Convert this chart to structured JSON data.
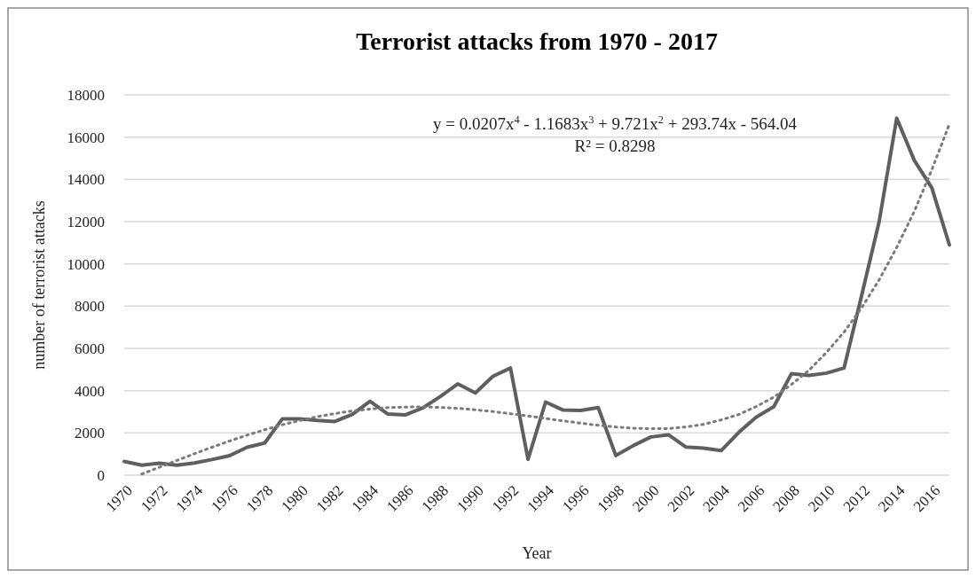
{
  "chart_data": {
    "type": "line",
    "title": "Terrorist attacks from 1970 - 2017",
    "xlabel": "Year",
    "ylabel": "number of terrorist attacks",
    "categories": [
      "1970",
      null,
      "1972",
      null,
      "1974",
      null,
      "1976",
      null,
      "1978",
      null,
      "1980",
      null,
      "1982",
      null,
      "1984",
      null,
      "1986",
      null,
      "1988",
      null,
      "1990",
      null,
      "1992",
      null,
      "1994",
      null,
      "1996",
      null,
      "1998",
      null,
      "2000",
      null,
      "2002",
      null,
      "2004",
      null,
      "2006",
      null,
      "2008",
      null,
      "2010",
      null,
      "2012",
      null,
      "2014",
      null,
      "2016",
      null
    ],
    "series": [
      {
        "color": "#5f5f5f",
        "line_style": "solid",
        "values": [
          650,
          470,
          570,
          470,
          580,
          740,
          920,
          1320,
          1520,
          2660,
          2660,
          2590,
          2540,
          2880,
          3500,
          2900,
          2850,
          3180,
          3720,
          4320,
          3890,
          4680,
          5070,
          750,
          3460,
          3080,
          3060,
          3200,
          930,
          1400,
          1810,
          1910,
          1330,
          1280,
          1160,
          2020,
          2750,
          3240,
          4800,
          4720,
          4830,
          5070,
          8500,
          12000,
          16900,
          14900,
          13600,
          10900
        ]
      },
      {
        "color": "#7a7a7a",
        "line_style": "dotted",
        "values": [
          null,
          53,
          375,
          697,
          1015,
          1323,
          1617,
          1895,
          2150,
          2384,
          2585,
          2771,
          2915,
          3043,
          3130,
          3196,
          3223,
          3233,
          3205,
          3165,
          3095,
          3012,
          2910,
          2802,
          2685,
          2571,
          2460,
          2361,
          2280,
          2220,
          2200,
          2206,
          2285,
          2405,
          2615,
          2871,
          3250,
          3693,
          4290,
          4961,
          5810,
          6770,
          7920,
          9247,
          10780,
          12483,
          14460,
          16612
        ]
      }
    ],
    "ylim": [
      0,
      18000
    ],
    "yticks": [
      0,
      2000,
      4000,
      6000,
      8000,
      10000,
      12000,
      14000,
      16000,
      18000
    ],
    "grid": "y",
    "annotations": [
      "y = 0.0207x$^{4}$ - 1.1683x$^{3}$ + 9.721x$^{2}$ + 293.74x - 564.04",
      "R² = 0.8298"
    ]
  }
}
